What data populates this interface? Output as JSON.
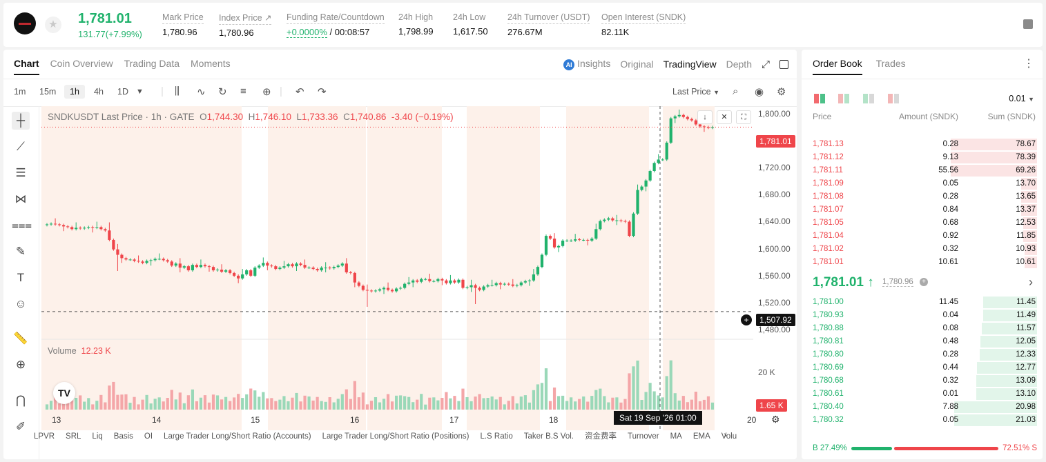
{
  "ticker": {
    "last_price": "1,781.01",
    "change": "131.77(+7.99%)",
    "stats": [
      {
        "label": "Mark Price",
        "value": "1,780.96"
      },
      {
        "label": "Index Price ↗",
        "value": "1,780.96"
      },
      {
        "label": "Funding Rate/Countdown",
        "value_green": "+0.0000%",
        "value": "/ 00:08:57"
      },
      {
        "label": "24h High",
        "value": "1,798.99"
      },
      {
        "label": "24h Low",
        "value": "1,617.50"
      },
      {
        "label": "24h Turnover (USDT)",
        "value": "276.67M"
      },
      {
        "label": "Open Interest (SNDK)",
        "value": "82.11K"
      }
    ]
  },
  "chart_panel": {
    "tabs": [
      "Chart",
      "Coin Overview",
      "Trading Data",
      "Moments"
    ],
    "views": {
      "insights": "Insights",
      "original": "Original",
      "tradingview": "TradingView",
      "depth": "Depth"
    },
    "timeframes": [
      "1m",
      "15m",
      "1h",
      "4h",
      "1D"
    ],
    "price_type": "Last Price",
    "legend": {
      "symbol": "SNDKUSDT Last Price · 1h · GATE",
      "o_label": "O",
      "o": "1,744.30",
      "h_label": "H",
      "h": "1,746.10",
      "l_label": "L",
      "l": "1,733.36",
      "c_label": "C",
      "c": "1,740.86",
      "chg": "-3.40 (−0.19%)"
    },
    "volume_label": "Volume",
    "volume_value": "12.23 K",
    "current_price_tag": "1,781.01",
    "crosshair_price_tag": "1,507.92",
    "crosshair_date": "Sat 19 Sep '26   01:00",
    "volume_axis_tick": "20 K",
    "volume_tag": "1.65 K",
    "indicators": [
      "LPVR",
      "SRL",
      "Liq",
      "Basis",
      "OI",
      "Large Trader Long/Short Ratio (Accounts)",
      "Large Trader Long/Short Ratio (Positions)",
      "L.S Ratio",
      "Taker B.S Vol.",
      "资金费率",
      "Turnover",
      "MA",
      "EMA",
      "Volu"
    ]
  },
  "chart_data": {
    "type": "candlestick",
    "x_ticks": [
      "13",
      "14",
      "15",
      "16",
      "17",
      "18",
      "20"
    ],
    "y_ticks": [
      1800,
      1760,
      1720,
      1680,
      1640,
      1600,
      1560,
      1520,
      1480
    ],
    "y_tick_labels": [
      "1,800.00",
      "1,760.00",
      "1,720.00",
      "1,680.00",
      "1,640.00",
      "1,600.00",
      "1,560.00",
      "1,520.00",
      "1,480.00"
    ],
    "ylim": [
      1470,
      1812
    ],
    "closes": [
      1637,
      1638,
      1637,
      1636,
      1634,
      1633,
      1630,
      1632,
      1631,
      1632,
      1633,
      1632,
      1633,
      1630,
      1628,
      1614,
      1600,
      1592,
      1587,
      1585,
      1585,
      1583,
      1582,
      1580,
      1583,
      1584,
      1586,
      1586,
      1584,
      1582,
      1576,
      1579,
      1573,
      1575,
      1569,
      1577,
      1574,
      1577,
      1575,
      1574,
      1569,
      1570,
      1567,
      1569,
      1565,
      1561,
      1557,
      1563,
      1569,
      1561,
      1573,
      1576,
      1580,
      1576,
      1575,
      1571,
      1573,
      1575,
      1578,
      1575,
      1579,
      1577,
      1573,
      1573,
      1571,
      1569,
      1573,
      1573,
      1572,
      1574,
      1576,
      1579,
      1566,
      1565,
      1551,
      1546,
      1540,
      1539,
      1538,
      1539,
      1541,
      1543,
      1540,
      1538,
      1542,
      1543,
      1549,
      1551,
      1554,
      1552,
      1556,
      1556,
      1553,
      1553,
      1556,
      1554,
      1550,
      1554,
      1551,
      1555,
      1543,
      1544,
      1547,
      1543,
      1540,
      1545,
      1547,
      1547,
      1550,
      1548,
      1549,
      1548,
      1546,
      1547,
      1551,
      1553,
      1554,
      1563,
      1574,
      1592,
      1620,
      1616,
      1603,
      1605,
      1613,
      1613,
      1613,
      1615,
      1614,
      1614,
      1613,
      1616,
      1630,
      1642,
      1644,
      1646,
      1643,
      1643,
      1642,
      1641,
      1620,
      1653,
      1688,
      1693,
      1702,
      1716,
      1728,
      1733,
      1733,
      1758,
      1794,
      1797,
      1799,
      1796,
      1793,
      1791,
      1785,
      1782,
      1781,
      1780,
      1781
    ],
    "current": 1781.01,
    "crosshair": 1507.92
  },
  "order_book": {
    "tabs": [
      "Order Book",
      "Trades"
    ],
    "precision": "0.01",
    "headers": {
      "price": "Price",
      "amount": "Amount (SNDK)",
      "sum": "Sum (SNDK)"
    },
    "asks": [
      {
        "price": "1,781.13",
        "amount": "0.28",
        "sum": "78.67",
        "depth": 0.375
      },
      {
        "price": "1,781.12",
        "amount": "9.13",
        "sum": "78.39",
        "depth": 0.375
      },
      {
        "price": "1,781.11",
        "amount": "55.56",
        "sum": "69.26",
        "depth": 0.375
      },
      {
        "price": "1,781.09",
        "amount": "0.05",
        "sum": "13.70",
        "depth": 0.07
      },
      {
        "price": "1,781.08",
        "amount": "0.28",
        "sum": "13.65",
        "depth": 0.07
      },
      {
        "price": "1,781.07",
        "amount": "0.84",
        "sum": "13.37",
        "depth": 0.07
      },
      {
        "price": "1,781.05",
        "amount": "0.68",
        "sum": "12.53",
        "depth": 0.06
      },
      {
        "price": "1,781.04",
        "amount": "0.92",
        "sum": "11.85",
        "depth": 0.06
      },
      {
        "price": "1,781.02",
        "amount": "0.32",
        "sum": "10.93",
        "depth": 0.055
      },
      {
        "price": "1,781.01",
        "amount": "10.61",
        "sum": "10.61",
        "depth": 0.055
      }
    ],
    "mid_price": "1,781.01 ↑",
    "mark_price": "1,780.96",
    "bids": [
      {
        "price": "1,781.00",
        "amount": "11.45",
        "sum": "11.45",
        "depth": 0.235
      },
      {
        "price": "1,780.93",
        "amount": "0.04",
        "sum": "11.49",
        "depth": 0.235
      },
      {
        "price": "1,780.88",
        "amount": "0.08",
        "sum": "11.57",
        "depth": 0.24
      },
      {
        "price": "1,780.81",
        "amount": "0.48",
        "sum": "12.05",
        "depth": 0.245
      },
      {
        "price": "1,780.80",
        "amount": "0.28",
        "sum": "12.33",
        "depth": 0.25
      },
      {
        "price": "1,780.69",
        "amount": "0.44",
        "sum": "12.77",
        "depth": 0.26
      },
      {
        "price": "1,780.68",
        "amount": "0.32",
        "sum": "13.09",
        "depth": 0.265
      },
      {
        "price": "1,780.61",
        "amount": "0.01",
        "sum": "13.10",
        "depth": 0.265
      },
      {
        "price": "1,780.40",
        "amount": "7.88",
        "sum": "20.98",
        "depth": 0.36
      },
      {
        "price": "1,780.32",
        "amount": "0.05",
        "sum": "21.03",
        "depth": 0.36
      }
    ],
    "ratio": {
      "buy_label": "B 27.49%",
      "sell_label": "72.51% S",
      "buy": 0.2749
    }
  }
}
